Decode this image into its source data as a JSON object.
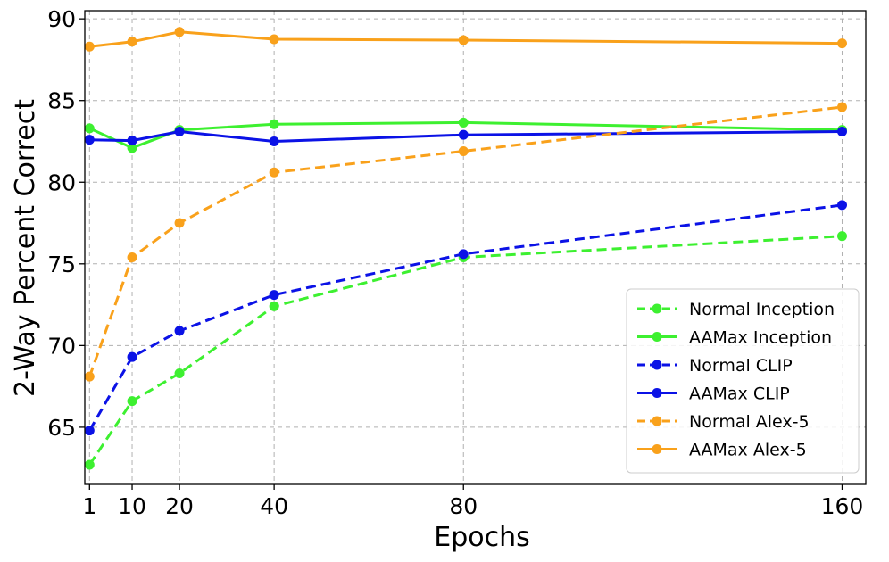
{
  "chart_data": {
    "type": "line",
    "title": "",
    "xlabel": "Epochs",
    "ylabel": "2-Way Percent Correct",
    "x": [
      1,
      10,
      20,
      40,
      80,
      160
    ],
    "x_ticks": [
      1,
      10,
      20,
      40,
      80,
      160
    ],
    "y_ticks": [
      65,
      70,
      75,
      80,
      85,
      90
    ],
    "xlim": [
      0,
      165
    ],
    "ylim": [
      61.5,
      90.5
    ],
    "grid": true,
    "legend_position": "bottom-right",
    "series": [
      {
        "name": "Normal Inception",
        "color": "#3df030",
        "style": "dashed",
        "values": [
          62.7,
          66.6,
          68.3,
          72.4,
          75.4,
          76.7
        ]
      },
      {
        "name": "AAMax Inception",
        "color": "#3df030",
        "style": "solid",
        "values": [
          83.3,
          82.1,
          83.2,
          83.55,
          83.65,
          83.2
        ]
      },
      {
        "name": "Normal CLIP",
        "color": "#0b12e6",
        "style": "dashed",
        "values": [
          64.8,
          69.3,
          70.9,
          73.1,
          75.6,
          78.6
        ]
      },
      {
        "name": "AAMax CLIP",
        "color": "#0b12e6",
        "style": "solid",
        "values": [
          82.6,
          82.55,
          83.1,
          82.5,
          82.9,
          83.1
        ]
      },
      {
        "name": "Normal Alex-5",
        "color": "#f9a11b",
        "style": "dashed",
        "values": [
          68.1,
          75.4,
          77.5,
          80.6,
          81.9,
          84.6
        ]
      },
      {
        "name": "AAMax Alex-5",
        "color": "#f9a11b",
        "style": "solid",
        "values": [
          88.3,
          88.6,
          89.2,
          88.75,
          88.7,
          88.5
        ]
      }
    ]
  }
}
